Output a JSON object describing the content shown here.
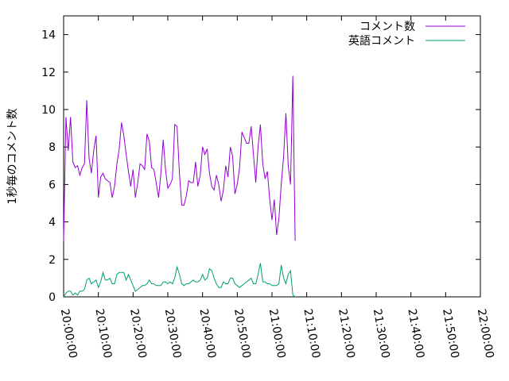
{
  "chart_data": {
    "type": "line",
    "title": "",
    "xlabel": "",
    "ylabel": "1秒毎のコメント数",
    "xlim": [
      "20:00:00",
      "22:00:00"
    ],
    "ylim": [
      0,
      15
    ],
    "x_ticks": [
      "20:00:00",
      "20:10:00",
      "20:20:00",
      "20:30:00",
      "20:40:00",
      "20:50:00",
      "21:00:00",
      "21:10:00",
      "21:20:00",
      "21:30:00",
      "21:40:00",
      "21:50:00",
      "22:00:00"
    ],
    "y_ticks": [
      0,
      2,
      4,
      6,
      8,
      10,
      12,
      14
    ],
    "grid": false,
    "legend_position": "top-right",
    "series": [
      {
        "name": "コメント数",
        "color": "#9400d3",
        "points": [
          [
            "20:00:00",
            3.0
          ],
          [
            "20:00:40",
            9.6
          ],
          [
            "20:01:20",
            7.8
          ],
          [
            "20:02:00",
            9.6
          ],
          [
            "20:02:40",
            7.2
          ],
          [
            "20:03:20",
            6.9
          ],
          [
            "20:04:00",
            7.0
          ],
          [
            "20:04:40",
            6.5
          ],
          [
            "20:05:20",
            6.9
          ],
          [
            "20:06:00",
            7.1
          ],
          [
            "20:06:40",
            10.5
          ],
          [
            "20:07:20",
            7.4
          ],
          [
            "20:08:00",
            6.6
          ],
          [
            "20:08:40",
            7.8
          ],
          [
            "20:09:20",
            8.6
          ],
          [
            "20:10:00",
            5.3
          ],
          [
            "20:10:40",
            6.4
          ],
          [
            "20:11:20",
            6.6
          ],
          [
            "20:12:00",
            6.3
          ],
          [
            "20:12:40",
            6.2
          ],
          [
            "20:13:20",
            6.1
          ],
          [
            "20:14:00",
            5.3
          ],
          [
            "20:14:40",
            5.9
          ],
          [
            "20:15:20",
            7.1
          ],
          [
            "20:16:00",
            7.9
          ],
          [
            "20:16:40",
            9.3
          ],
          [
            "20:17:20",
            8.6
          ],
          [
            "20:18:00",
            7.6
          ],
          [
            "20:18:40",
            6.7
          ],
          [
            "20:19:20",
            5.9
          ],
          [
            "20:20:00",
            6.8
          ],
          [
            "20:20:40",
            5.3
          ],
          [
            "20:21:20",
            6.1
          ],
          [
            "20:22:00",
            7.1
          ],
          [
            "20:22:40",
            7.0
          ],
          [
            "20:23:20",
            6.8
          ],
          [
            "20:24:00",
            8.7
          ],
          [
            "20:24:40",
            8.3
          ],
          [
            "20:25:20",
            6.9
          ],
          [
            "20:26:00",
            6.8
          ],
          [
            "20:26:40",
            6.1
          ],
          [
            "20:27:20",
            5.3
          ],
          [
            "20:28:00",
            6.6
          ],
          [
            "20:28:40",
            8.4
          ],
          [
            "20:29:20",
            6.8
          ],
          [
            "20:30:00",
            5.8
          ],
          [
            "20:30:40",
            6.0
          ],
          [
            "20:31:20",
            6.3
          ],
          [
            "20:32:00",
            9.2
          ],
          [
            "20:32:40",
            9.1
          ],
          [
            "20:33:20",
            6.6
          ],
          [
            "20:34:00",
            4.9
          ],
          [
            "20:34:40",
            4.9
          ],
          [
            "20:35:20",
            5.4
          ],
          [
            "20:36:00",
            6.2
          ],
          [
            "20:36:40",
            6.1
          ],
          [
            "20:37:20",
            6.1
          ],
          [
            "20:38:00",
            7.2
          ],
          [
            "20:38:40",
            5.9
          ],
          [
            "20:39:20",
            6.5
          ],
          [
            "20:40:00",
            8.0
          ],
          [
            "20:40:40",
            7.6
          ],
          [
            "20:41:20",
            7.9
          ],
          [
            "20:42:00",
            6.6
          ],
          [
            "20:42:40",
            5.9
          ],
          [
            "20:43:20",
            5.7
          ],
          [
            "20:44:00",
            6.5
          ],
          [
            "20:44:40",
            6.0
          ],
          [
            "20:45:20",
            5.1
          ],
          [
            "20:46:00",
            5.7
          ],
          [
            "20:46:40",
            7.0
          ],
          [
            "20:47:20",
            6.4
          ],
          [
            "20:48:00",
            8.0
          ],
          [
            "20:48:40",
            7.5
          ],
          [
            "20:49:20",
            5.5
          ],
          [
            "20:50:00",
            6.0
          ],
          [
            "20:50:40",
            6.9
          ],
          [
            "20:51:20",
            8.8
          ],
          [
            "20:52:00",
            8.5
          ],
          [
            "20:52:40",
            8.2
          ],
          [
            "20:53:20",
            8.2
          ],
          [
            "20:54:00",
            9.1
          ],
          [
            "20:54:40",
            7.6
          ],
          [
            "20:55:20",
            6.1
          ],
          [
            "20:56:00",
            8.0
          ],
          [
            "20:56:40",
            9.2
          ],
          [
            "20:57:20",
            7.1
          ],
          [
            "20:58:00",
            6.3
          ],
          [
            "20:58:40",
            6.7
          ],
          [
            "20:59:20",
            5.2
          ],
          [
            "21:00:00",
            4.1
          ],
          [
            "21:00:40",
            5.2
          ],
          [
            "21:01:20",
            3.3
          ],
          [
            "21:02:00",
            4.2
          ],
          [
            "21:02:40",
            6.0
          ],
          [
            "21:03:20",
            7.5
          ],
          [
            "21:04:00",
            9.8
          ],
          [
            "21:04:40",
            7.0
          ],
          [
            "21:05:20",
            6.0
          ],
          [
            "21:06:00",
            11.8
          ],
          [
            "21:06:40",
            3.0
          ]
        ]
      },
      {
        "name": "英語コメント",
        "color": "#009e73",
        "points": [
          [
            "20:00:00",
            0.0
          ],
          [
            "20:00:40",
            0.2
          ],
          [
            "20:01:20",
            0.3
          ],
          [
            "20:02:00",
            0.3
          ],
          [
            "20:02:40",
            0.1
          ],
          [
            "20:03:20",
            0.2
          ],
          [
            "20:04:00",
            0.1
          ],
          [
            "20:04:40",
            0.3
          ],
          [
            "20:05:20",
            0.3
          ],
          [
            "20:06:00",
            0.4
          ],
          [
            "20:06:40",
            0.9
          ],
          [
            "20:07:20",
            1.0
          ],
          [
            "20:08:00",
            0.7
          ],
          [
            "20:08:40",
            0.8
          ],
          [
            "20:09:20",
            0.9
          ],
          [
            "20:10:00",
            0.5
          ],
          [
            "20:10:40",
            0.8
          ],
          [
            "20:11:20",
            1.3
          ],
          [
            "20:12:00",
            0.9
          ],
          [
            "20:12:40",
            0.9
          ],
          [
            "20:13:20",
            1.0
          ],
          [
            "20:14:00",
            0.7
          ],
          [
            "20:14:40",
            0.7
          ],
          [
            "20:15:20",
            1.2
          ],
          [
            "20:16:00",
            1.3
          ],
          [
            "20:16:40",
            1.3
          ],
          [
            "20:17:20",
            1.3
          ],
          [
            "20:18:00",
            0.9
          ],
          [
            "20:18:40",
            1.2
          ],
          [
            "20:19:20",
            0.9
          ],
          [
            "20:20:00",
            0.6
          ],
          [
            "20:20:40",
            0.3
          ],
          [
            "20:21:20",
            0.4
          ],
          [
            "20:22:00",
            0.5
          ],
          [
            "20:22:40",
            0.6
          ],
          [
            "20:23:20",
            0.6
          ],
          [
            "20:24:00",
            0.7
          ],
          [
            "20:24:40",
            0.9
          ],
          [
            "20:25:20",
            0.7
          ],
          [
            "20:26:00",
            0.7
          ],
          [
            "20:26:40",
            0.6
          ],
          [
            "20:27:20",
            0.6
          ],
          [
            "20:28:00",
            0.6
          ],
          [
            "20:28:40",
            0.8
          ],
          [
            "20:29:20",
            0.8
          ],
          [
            "20:30:00",
            0.7
          ],
          [
            "20:30:40",
            0.8
          ],
          [
            "20:31:20",
            0.7
          ],
          [
            "20:32:00",
            1.0
          ],
          [
            "20:32:40",
            1.6
          ],
          [
            "20:33:20",
            1.2
          ],
          [
            "20:34:00",
            0.7
          ],
          [
            "20:34:40",
            0.6
          ],
          [
            "20:35:20",
            0.7
          ],
          [
            "20:36:00",
            0.7
          ],
          [
            "20:36:40",
            0.8
          ],
          [
            "20:37:20",
            0.9
          ],
          [
            "20:38:00",
            0.8
          ],
          [
            "20:38:40",
            0.8
          ],
          [
            "20:39:20",
            0.9
          ],
          [
            "20:40:00",
            1.2
          ],
          [
            "20:40:40",
            0.9
          ],
          [
            "20:41:20",
            1.0
          ],
          [
            "20:42:00",
            1.5
          ],
          [
            "20:42:40",
            1.4
          ],
          [
            "20:43:20",
            1.0
          ],
          [
            "20:44:00",
            0.7
          ],
          [
            "20:44:40",
            0.5
          ],
          [
            "20:45:20",
            0.5
          ],
          [
            "20:46:00",
            0.8
          ],
          [
            "20:46:40",
            0.7
          ],
          [
            "20:47:20",
            0.7
          ],
          [
            "20:48:00",
            1.0
          ],
          [
            "20:48:40",
            1.0
          ],
          [
            "20:49:20",
            0.7
          ],
          [
            "20:50:00",
            0.6
          ],
          [
            "20:50:40",
            0.5
          ],
          [
            "20:51:20",
            0.6
          ],
          [
            "20:52:00",
            0.7
          ],
          [
            "20:52:40",
            0.8
          ],
          [
            "20:53:20",
            0.9
          ],
          [
            "20:54:00",
            1.0
          ],
          [
            "20:54:40",
            0.7
          ],
          [
            "20:55:20",
            0.7
          ],
          [
            "20:56:00",
            1.2
          ],
          [
            "20:56:40",
            1.8
          ],
          [
            "20:57:20",
            0.8
          ],
          [
            "20:58:00",
            0.8
          ],
          [
            "20:58:40",
            0.7
          ],
          [
            "20:59:20",
            0.7
          ],
          [
            "21:00:00",
            0.6
          ],
          [
            "21:00:40",
            0.6
          ],
          [
            "21:01:20",
            0.6
          ],
          [
            "21:02:00",
            0.7
          ],
          [
            "21:02:40",
            1.7
          ],
          [
            "21:03:20",
            1.0
          ],
          [
            "21:04:00",
            0.7
          ],
          [
            "21:04:40",
            1.2
          ],
          [
            "21:05:20",
            1.4
          ],
          [
            "21:06:00",
            0.1
          ],
          [
            "21:06:40",
            0.0
          ]
        ]
      }
    ]
  }
}
